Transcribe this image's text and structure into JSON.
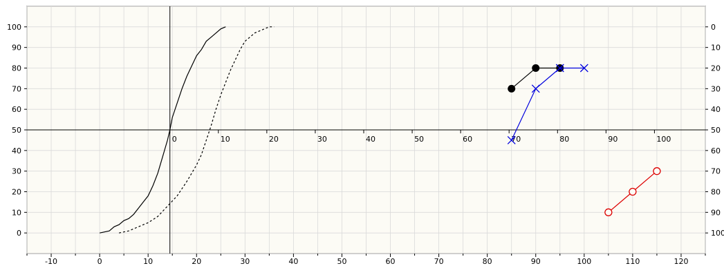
{
  "chart_data": {
    "type": "scatter",
    "grid": true,
    "background": "#fcfbf5",
    "grid_color": "#d9d9d9",
    "axes": {
      "bottom": {
        "range": [
          -15,
          125
        ],
        "ticks": [
          -10,
          0,
          10,
          20,
          30,
          40,
          50,
          60,
          70,
          80,
          90,
          100,
          110,
          120
        ]
      },
      "left": {
        "range": [
          -10,
          110
        ],
        "ticks": [
          0,
          10,
          20,
          30,
          40,
          50,
          60,
          70,
          80,
          90,
          100
        ]
      },
      "right": {
        "range": [
          110,
          -10
        ],
        "ticks": [
          0,
          10,
          20,
          30,
          40,
          50,
          60,
          70,
          80,
          90,
          100
        ]
      },
      "inner_horizontal": {
        "at_y": 50,
        "range": [
          -15,
          125
        ],
        "offset": 14.5,
        "ticks": [
          0,
          10,
          20,
          30,
          40,
          50,
          60,
          70,
          80,
          90,
          100
        ]
      },
      "inner_vertical": {
        "at_x": 14.5
      }
    },
    "series": [
      {
        "style": "solid-line",
        "color": "#000000",
        "x": [
          0,
          2,
          3,
          4,
          5,
          6,
          7,
          8,
          9,
          10,
          11,
          12,
          13,
          14,
          14.5,
          15,
          16,
          17,
          18,
          19,
          20,
          21,
          22,
          23,
          24,
          25,
          26
        ],
        "y": [
          0,
          1,
          3,
          4,
          6,
          7,
          9,
          12,
          15,
          18,
          23,
          29,
          37,
          45,
          50,
          56,
          63,
          70,
          76,
          81,
          86,
          89,
          93,
          95,
          97,
          99,
          100
        ]
      },
      {
        "style": "dashed-line",
        "color": "#000000",
        "x": [
          4,
          6,
          8,
          10,
          12,
          14,
          16,
          18,
          20,
          21,
          22,
          23,
          24,
          25,
          26,
          27,
          28,
          29,
          30,
          31,
          32,
          33,
          34,
          35,
          36
        ],
        "y": [
          0,
          1,
          3,
          5,
          8,
          13,
          18,
          25,
          33,
          38,
          45,
          52,
          60,
          67,
          73,
          79,
          84,
          89,
          93,
          95,
          97,
          98,
          99,
          100,
          100
        ]
      },
      {
        "style": "filled-circle",
        "color": "#000000",
        "x": [
          85,
          90,
          95
        ],
        "y": [
          70,
          80,
          80
        ]
      },
      {
        "style": "cross",
        "color": "#0000dd",
        "x": [
          85,
          90,
          95,
          100
        ],
        "y": [
          45,
          70,
          80,
          80
        ]
      },
      {
        "style": "open-circle",
        "color": "#dd0000",
        "x": [
          105,
          110,
          115
        ],
        "y": [
          10,
          20,
          30
        ]
      }
    ]
  }
}
